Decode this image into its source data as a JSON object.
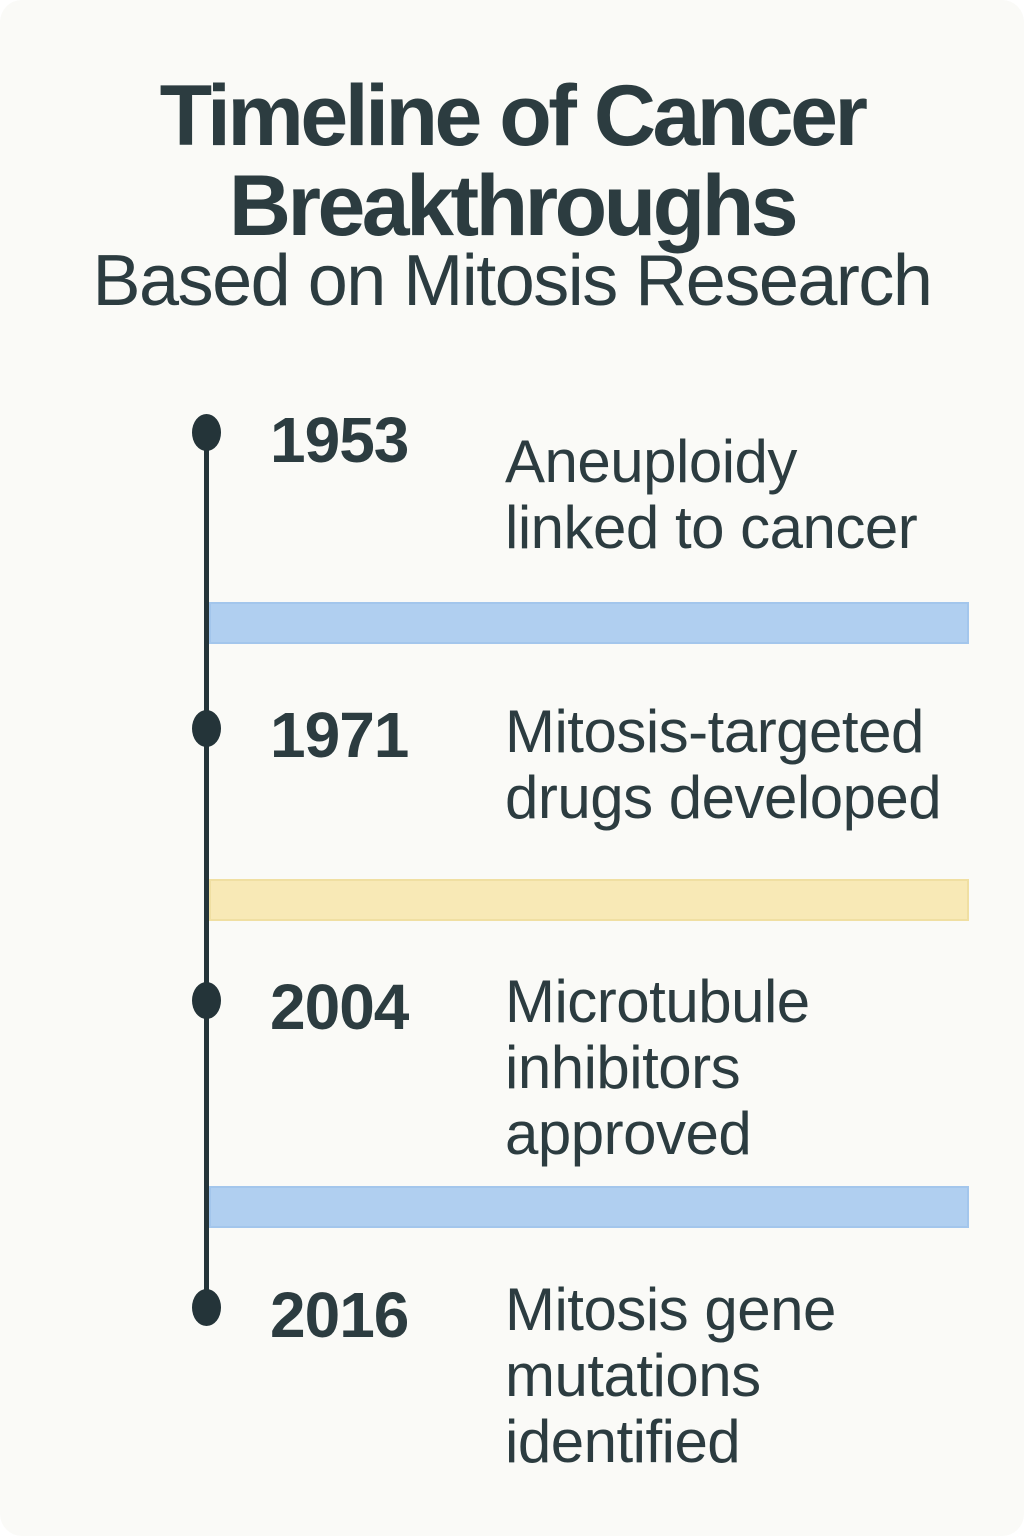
{
  "title": {
    "line1": "Timeline of Cancer",
    "line2": "Breakthroughs",
    "subtitle": "Based on Mitosis Research"
  },
  "timeline": {
    "entries": [
      {
        "year": "1953",
        "description": "Aneuploidy\nlinked to cancer"
      },
      {
        "year": "1971",
        "description": "Mitosis-targeted\ndrugs developed"
      },
      {
        "year": "2004",
        "description": "Microtubule\ninhibitors\napproved"
      },
      {
        "year": "2016",
        "description": "Mitosis gene\nmutations\nidentified"
      }
    ],
    "bands": [
      {
        "position": "after-1953",
        "color": "#b0cff0"
      },
      {
        "position": "after-1971",
        "color": "#f8e9b6"
      },
      {
        "position": "after-2004",
        "color": "#b0cff0"
      }
    ]
  },
  "colors": {
    "background": "#fafaf7",
    "text": "#2c3c40",
    "spine_and_dots": "#243439",
    "band_blue": "#b0cff0",
    "band_yellow": "#f8e9b6"
  }
}
